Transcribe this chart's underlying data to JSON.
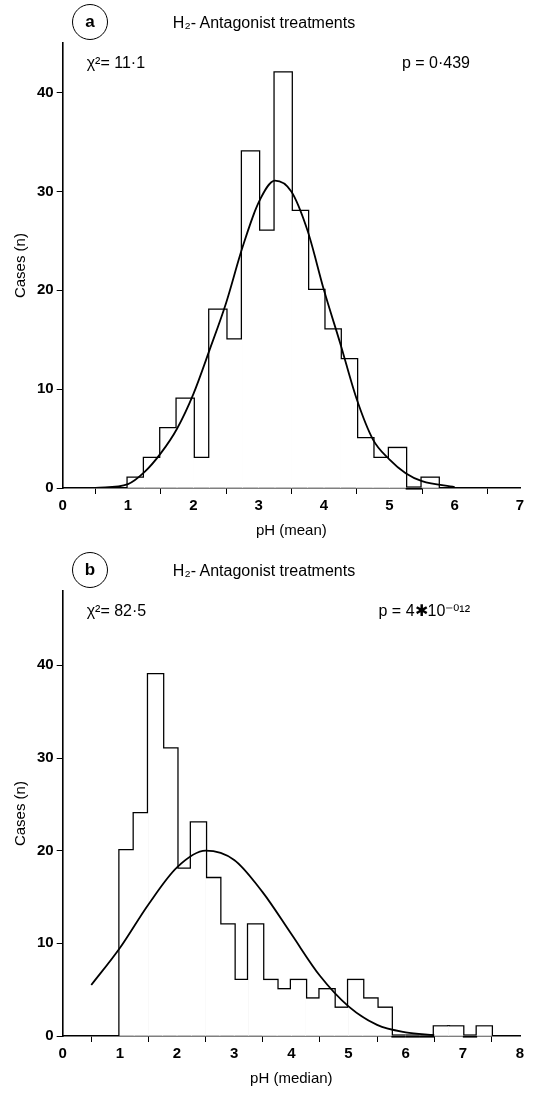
{
  "chart_data": [
    {
      "type": "histogram",
      "title": "H₂- Antagonist treatments",
      "xlabel": "pH (mean)",
      "ylabel": "Cases (n)",
      "annotations": [
        "a",
        "χ²= 11·1",
        "p = 0·439"
      ],
      "bins": [
        1,
        1.25,
        1.5,
        1.75,
        2,
        2.25,
        2.5,
        2.75,
        3,
        3.25,
        3.5,
        3.75,
        4,
        4.25,
        4.5,
        4.75,
        5,
        5.25,
        5.5,
        5.75
      ],
      "values": [
        1,
        3,
        6,
        9,
        3,
        18,
        15,
        34,
        26,
        42,
        28,
        20,
        16,
        13,
        5,
        3,
        4,
        0,
        1
      ],
      "color": "#ffffff",
      "series": [
        {
          "type": "line",
          "color": "#000000",
          "x": [
            0.5,
            1,
            1.25,
            1.5,
            1.75,
            2,
            2.25,
            2.5,
            2.75,
            3,
            3.25,
            3.5,
            3.75,
            4,
            4.25,
            4.5,
            4.75,
            5,
            5.25,
            5.5,
            6
          ],
          "values": [
            0,
            0.4,
            1.6,
            3.5,
            6,
            9.5,
            14,
            18.7,
            24.3,
            28.9,
            31.1,
            30,
            26,
            20,
            14.6,
            9,
            4.9,
            2.9,
            1.5,
            0.7,
            0.1
          ]
        }
      ],
      "xlim": [
        0,
        7
      ],
      "xticks": [
        0,
        1,
        2,
        3,
        4,
        5,
        6,
        7
      ],
      "ylim": [
        0,
        45
      ],
      "yticks": [
        0,
        10,
        20,
        30,
        40
      ],
      "grid": false,
      "legend": false,
      "marker": "none"
    },
    {
      "type": "histogram",
      "title": "H₂- Antagonist treatments",
      "xlabel": "pH (median)",
      "ylabel": "Cases (n)",
      "annotations": [
        "b",
        "χ²= 82·5",
        "p = 4✱10⁻⁰¹²"
      ],
      "bins": [
        1,
        1.25,
        1.5,
        1.75,
        2,
        2.25,
        2.5,
        2.75,
        3,
        3.25,
        3.5,
        3.75,
        4,
        4.25,
        4.5,
        4.75,
        5,
        5.25,
        5.5,
        5.75,
        6,
        6.25,
        6.5,
        6.75,
        7,
        7.25,
        7.5
      ],
      "values": [
        20,
        24,
        39,
        31,
        18,
        23,
        17,
        12,
        6,
        12,
        6,
        5,
        6,
        4,
        5,
        3,
        6,
        4,
        3,
        0,
        0,
        0,
        1,
        1,
        0,
        1
      ],
      "color": "#ffffff",
      "series": [
        {
          "type": "line",
          "color": "#000000",
          "x": [
            0.5,
            1,
            1.5,
            2,
            2.5,
            3,
            3.5,
            4,
            4.5,
            5,
            5.5,
            6,
            6.5
          ],
          "values": [
            5.5,
            9.5,
            14.2,
            18.2,
            20,
            19,
            15.5,
            11,
            6.5,
            3.2,
            1.2,
            0.4,
            0.1
          ]
        }
      ],
      "xlim": [
        0,
        8
      ],
      "xticks": [
        0,
        1,
        2,
        3,
        4,
        5,
        6,
        7,
        8
      ],
      "ylim": [
        0,
        48
      ],
      "yticks": [
        0,
        10,
        20,
        30,
        40
      ],
      "grid": false,
      "legend": false,
      "marker": "none"
    }
  ]
}
